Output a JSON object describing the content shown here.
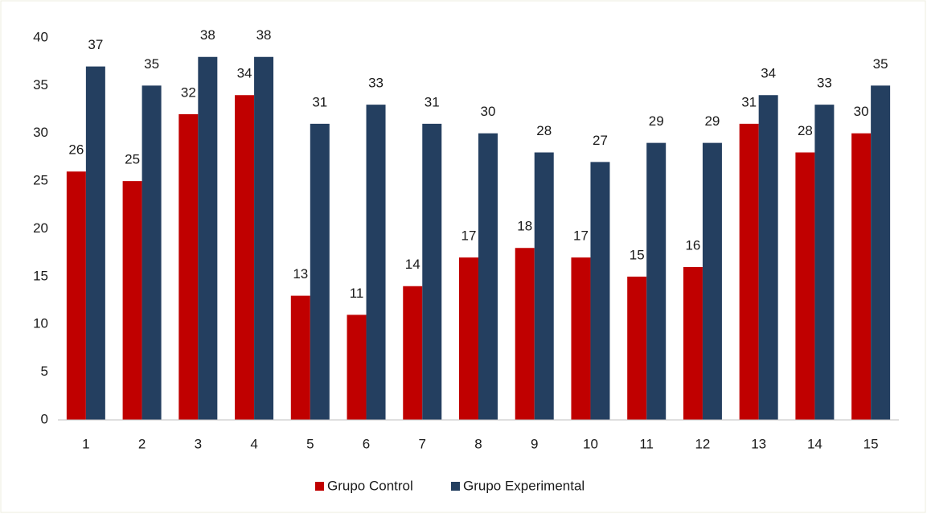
{
  "chart_data": {
    "type": "bar",
    "categories": [
      "1",
      "2",
      "3",
      "4",
      "5",
      "6",
      "7",
      "8",
      "9",
      "10",
      "11",
      "12",
      "13",
      "14",
      "15"
    ],
    "series": [
      {
        "name": "Grupo Control",
        "color": "#c00000",
        "values": [
          26,
          25,
          32,
          34,
          13,
          11,
          14,
          17,
          18,
          17,
          15,
          16,
          31,
          28,
          30
        ]
      },
      {
        "name": "Grupo Experimental",
        "color": "#243f60",
        "values": [
          37,
          35,
          38,
          38,
          31,
          33,
          31,
          30,
          28,
          27,
          29,
          29,
          34,
          33,
          35
        ]
      }
    ],
    "ylim": [
      0,
      40
    ],
    "yticks": [
      0,
      5,
      10,
      15,
      20,
      25,
      30,
      35,
      40
    ],
    "grid": false,
    "legend": "bottom"
  }
}
